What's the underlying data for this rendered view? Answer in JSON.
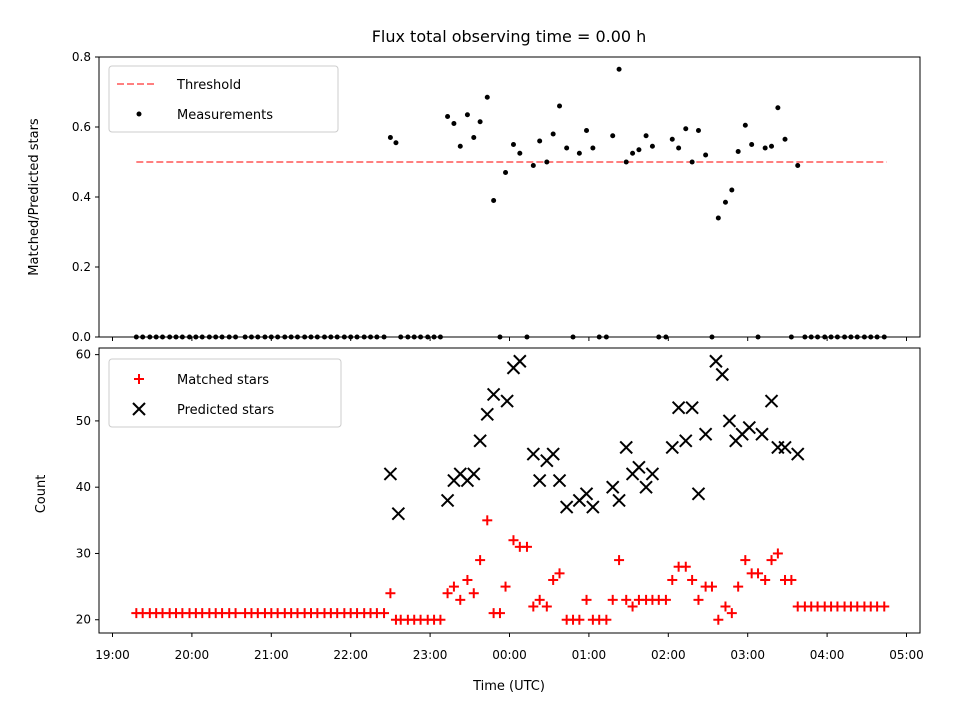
{
  "chart_data": [
    {
      "type": "scatter",
      "title": "Flux total observing time = 0.00 h",
      "xlabel": "",
      "ylabel": "Matched/Predicted stars",
      "ylim": [
        0,
        0.8
      ],
      "yticks": [
        "0.0",
        "0.2",
        "0.4",
        "0.6",
        "0.8"
      ],
      "xlim_hours": [
        18.83,
        29.17
      ],
      "legend_position": "upper-left",
      "threshold": {
        "name": "Threshold",
        "value": 0.5,
        "x_range_hours": [
          19.3,
          28.75
        ],
        "color": "#ff7f7f"
      },
      "series": [
        {
          "name": "Measurements",
          "color": "#000000",
          "x_hours": [
            19.3,
            19.38,
            19.47,
            19.55,
            19.63,
            19.72,
            19.8,
            19.88,
            19.97,
            20.05,
            20.13,
            20.22,
            20.3,
            20.38,
            20.47,
            20.55,
            20.67,
            20.75,
            20.83,
            20.92,
            21.0,
            21.08,
            21.17,
            21.25,
            21.33,
            21.42,
            21.5,
            21.58,
            21.67,
            21.75,
            21.83,
            21.92,
            22.0,
            22.08,
            22.17,
            22.25,
            22.33,
            22.42,
            22.5,
            22.57,
            22.63,
            22.72,
            22.8,
            22.88,
            22.97,
            23.05,
            23.13,
            23.22,
            23.3,
            23.38,
            23.47,
            23.55,
            23.63,
            23.72,
            23.8,
            23.88,
            23.95,
            24.05,
            24.13,
            24.22,
            24.3,
            24.38,
            24.47,
            24.55,
            24.63,
            24.72,
            24.8,
            24.88,
            24.97,
            25.05,
            25.13,
            25.22,
            25.3,
            25.38,
            25.47,
            25.55,
            25.63,
            25.72,
            25.8,
            25.88,
            25.97,
            26.05,
            26.13,
            26.22,
            26.3,
            26.38,
            26.47,
            26.55,
            26.63,
            26.72,
            26.8,
            26.88,
            26.97,
            27.05,
            27.13,
            27.22,
            27.3,
            27.38,
            27.47,
            27.55,
            27.63,
            27.72,
            27.8,
            27.88,
            27.97,
            28.05,
            28.13,
            28.22,
            28.3,
            28.38,
            28.47,
            28.55,
            28.63,
            28.72
          ],
          "y": [
            0,
            0,
            0,
            0,
            0,
            0,
            0,
            0,
            0,
            0,
            0,
            0,
            0,
            0,
            0,
            0,
            0,
            0,
            0,
            0,
            0,
            0,
            0,
            0,
            0,
            0,
            0,
            0,
            0,
            0,
            0,
            0,
            0,
            0,
            0,
            0,
            0,
            0,
            0.57,
            0.555,
            0,
            0,
            0,
            0,
            0,
            0,
            0,
            0.63,
            0.61,
            0.545,
            0.635,
            0.57,
            0.615,
            0.685,
            0.39,
            0,
            0.47,
            0.55,
            0.525,
            0,
            0.49,
            0.56,
            0.5,
            0.58,
            0.66,
            0.54,
            0,
            0.525,
            0.59,
            0.54,
            0,
            0,
            0.575,
            0.765,
            0.5,
            0.525,
            0.535,
            0.575,
            0.545,
            0,
            0,
            0.565,
            0.54,
            0.595,
            0.5,
            0.59,
            0.52,
            0,
            0.34,
            0.385,
            0.42,
            0.53,
            0.605,
            0.55,
            0,
            0.54,
            0.545,
            0.655,
            0.565,
            0,
            0.49,
            0,
            0,
            0,
            0,
            0,
            0,
            0,
            0,
            0,
            0,
            0,
            0,
            0
          ]
        }
      ]
    },
    {
      "type": "scatter",
      "title": "",
      "xlabel": "Time (UTC)",
      "ylabel": "Count",
      "ylim": [
        18,
        61
      ],
      "yticks": [
        "20",
        "30",
        "40",
        "50",
        "60"
      ],
      "xticks": [
        "19:00",
        "20:00",
        "21:00",
        "22:00",
        "23:00",
        "00:00",
        "01:00",
        "02:00",
        "03:00",
        "04:00",
        "05:00"
      ],
      "xlim_hours": [
        18.83,
        29.17
      ],
      "legend_position": "upper-left",
      "series": [
        {
          "name": "Matched stars",
          "marker": "+",
          "color": "#ff0000",
          "x_hours": [
            19.3,
            19.38,
            19.47,
            19.55,
            19.63,
            19.72,
            19.8,
            19.88,
            19.97,
            20.05,
            20.13,
            20.22,
            20.3,
            20.38,
            20.47,
            20.55,
            20.67,
            20.75,
            20.83,
            20.92,
            21.0,
            21.08,
            21.17,
            21.25,
            21.33,
            21.42,
            21.5,
            21.58,
            21.67,
            21.75,
            21.83,
            21.92,
            22.0,
            22.08,
            22.17,
            22.25,
            22.33,
            22.42,
            22.5,
            22.57,
            22.63,
            22.72,
            22.8,
            22.88,
            22.97,
            23.05,
            23.13,
            23.22,
            23.3,
            23.38,
            23.47,
            23.55,
            23.63,
            23.72,
            23.8,
            23.88,
            23.95,
            24.05,
            24.13,
            24.22,
            24.3,
            24.38,
            24.47,
            24.55,
            24.63,
            24.72,
            24.8,
            24.88,
            24.97,
            25.05,
            25.13,
            25.22,
            25.3,
            25.38,
            25.47,
            25.55,
            25.63,
            25.72,
            25.8,
            25.88,
            25.97,
            26.05,
            26.13,
            26.22,
            26.3,
            26.38,
            26.47,
            26.55,
            26.63,
            26.72,
            26.8,
            26.88,
            26.97,
            27.05,
            27.13,
            27.22,
            27.3,
            27.38,
            27.47,
            27.55,
            27.63,
            27.72,
            27.8,
            27.88,
            27.97,
            28.05,
            28.13,
            28.22,
            28.3,
            28.38,
            28.47,
            28.55,
            28.63,
            28.72
          ],
          "y": [
            21,
            21,
            21,
            21,
            21,
            21,
            21,
            21,
            21,
            21,
            21,
            21,
            21,
            21,
            21,
            21,
            21,
            21,
            21,
            21,
            21,
            21,
            21,
            21,
            21,
            21,
            21,
            21,
            21,
            21,
            21,
            21,
            21,
            21,
            21,
            21,
            21,
            21,
            24,
            20,
            20,
            20,
            20,
            20,
            20,
            20,
            20,
            24,
            25,
            23,
            26,
            24,
            29,
            35,
            21,
            21,
            25,
            32,
            31,
            31,
            22,
            23,
            22,
            26,
            27,
            20,
            20,
            20,
            23,
            20,
            20,
            20,
            23,
            29,
            23,
            22,
            23,
            23,
            23,
            23,
            23,
            26,
            28,
            28,
            26,
            23,
            25,
            25,
            20,
            22,
            21,
            25,
            29,
            27,
            27,
            26,
            29,
            30,
            26,
            26,
            22,
            22,
            22,
            22,
            22,
            22,
            22,
            22,
            22,
            22,
            22,
            22,
            22,
            22
          ]
        },
        {
          "name": "Predicted stars",
          "marker": "x",
          "color": "#000000",
          "x_hours": [
            22.5,
            22.6,
            23.22,
            23.3,
            23.38,
            23.47,
            23.55,
            23.63,
            23.72,
            23.8,
            23.97,
            24.05,
            24.13,
            24.3,
            24.38,
            24.47,
            24.55,
            24.63,
            24.72,
            24.88,
            24.97,
            25.05,
            25.3,
            25.38,
            25.47,
            25.55,
            25.63,
            25.72,
            25.8,
            26.05,
            26.13,
            26.22,
            26.3,
            26.38,
            26.47,
            26.6,
            26.68,
            26.77,
            26.85,
            26.93,
            27.02,
            27.18,
            27.3,
            27.38,
            27.47,
            27.63
          ],
          "y": [
            42,
            36,
            38,
            41,
            42,
            41,
            42,
            47,
            51,
            54,
            53,
            58,
            59,
            45,
            41,
            44,
            45,
            41,
            37,
            38,
            39,
            37,
            40,
            38,
            46,
            42,
            43,
            40,
            42,
            46,
            52,
            47,
            52,
            39,
            48,
            59,
            57,
            50,
            47,
            48,
            49,
            48,
            53,
            46,
            46,
            45
          ]
        }
      ]
    }
  ]
}
